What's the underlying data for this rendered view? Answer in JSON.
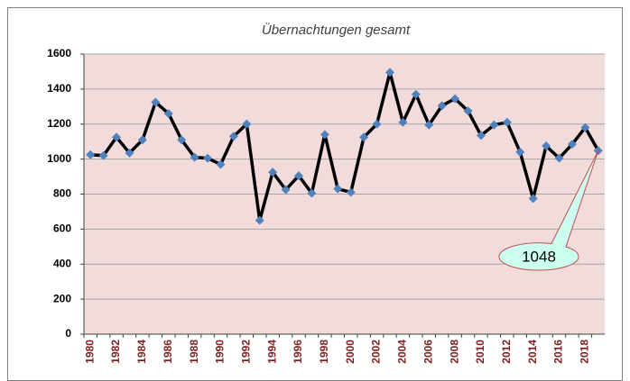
{
  "chart_data": {
    "type": "line",
    "title": "Übernachtungen gesamt",
    "categories": [
      "1980",
      null,
      "1982",
      null,
      "1984",
      null,
      "1986",
      null,
      "1988",
      null,
      "1990",
      null,
      "1992",
      null,
      "1994",
      null,
      "1996",
      null,
      "1998",
      null,
      "2000",
      null,
      "2002",
      null,
      "2004",
      null,
      "2006",
      null,
      "2008",
      null,
      "2010",
      null,
      "2012",
      null,
      "2014",
      null,
      "2016",
      null,
      "2018",
      null
    ],
    "series": [
      {
        "name": "Übernachtungen",
        "color": "#000000",
        "marker_color": "#4f81bd",
        "values": [
          1025,
          1020,
          1125,
          1035,
          1110,
          1325,
          1260,
          1110,
          1010,
          1005,
          970,
          1130,
          1200,
          650,
          925,
          825,
          905,
          805,
          1140,
          830,
          810,
          1125,
          1200,
          1495,
          1210,
          1370,
          1195,
          1305,
          1345,
          1275,
          1135,
          1195,
          1210,
          1040,
          775,
          1075,
          1005,
          1085,
          1180,
          1048
        ]
      }
    ],
    "ylim": [
      0,
      1600
    ],
    "yticks": [
      0,
      200,
      400,
      600,
      800,
      1000,
      1200,
      1400,
      1600
    ],
    "grid": true,
    "plot_background": "#f2dcdb"
  }
}
